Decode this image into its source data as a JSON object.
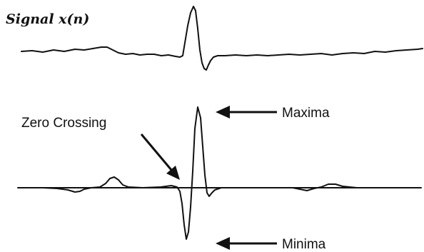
{
  "diagram": {
    "title": "Signal x(n)",
    "labels": {
      "zero_crossing": "Zero Crossing",
      "maxima": "Maxima",
      "minima": "Minima"
    }
  }
}
